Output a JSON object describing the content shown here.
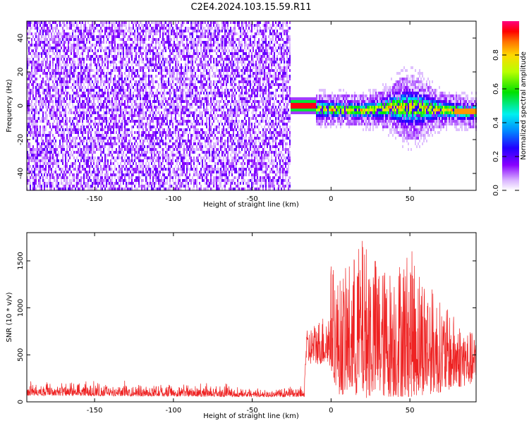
{
  "title": "C2E4.2024.103.15.59.R11",
  "chart_data": [
    {
      "type": "heatmap",
      "xlabel": "Height of straight line (km)",
      "ylabel": "Frequency (Hz)",
      "xlim": [
        -193,
        92
      ],
      "ylim": [
        -50,
        50
      ],
      "x_ticks": [
        -150,
        -100,
        -50,
        0,
        50
      ],
      "y_ticks": [
        -40,
        -20,
        0,
        20,
        40
      ],
      "colorbar": {
        "label": "Normalized spectral amplitude",
        "range": [
          0,
          1
        ],
        "ticks": [
          0.0,
          0.2,
          0.4,
          0.6,
          0.8
        ],
        "colormap": "rainbow (white-violet-blue-cyan-green-yellow-red-magenta)"
      },
      "regions": [
        {
          "x_range": [
            -193,
            -26
          ],
          "freq_range": [
            -50,
            50
          ],
          "amplitude": "low (0.05-0.25)",
          "pattern": "broadband noise"
        },
        {
          "x_range": [
            -26,
            -10
          ],
          "freq_center": 1,
          "amplitude": "high (0.8-1.0)",
          "pattern": "narrow line"
        },
        {
          "x_range": [
            -10,
            92
          ],
          "freq_center_trend": [
            [
              -10,
              -1
            ],
            [
              20,
              -2
            ],
            [
              40,
              0
            ],
            [
              60,
              -1
            ],
            [
              92,
              -3
            ]
          ],
          "freq_halfwidth": [
            8,
            20
          ],
          "amplitude": "0.3-0.9",
          "pattern": "meteor echo, widest near 50 km"
        }
      ]
    },
    {
      "type": "line",
      "xlabel": "Height of straight line (km)",
      "ylabel": "SNR (10 * v/v)",
      "xlim": [
        -193,
        92
      ],
      "ylim": [
        0,
        1800
      ],
      "x_ticks": [
        -150,
        -100,
        -50,
        0,
        50
      ],
      "y_ticks": [
        0,
        500,
        1000,
        1500
      ],
      "series": [
        {
          "color": "#ee2222",
          "envelope": [
            {
              "x": -193,
              "low": 20,
              "high": 320
            },
            {
              "x": -150,
              "low": 20,
              "high": 300
            },
            {
              "x": -100,
              "low": 20,
              "high": 270
            },
            {
              "x": -50,
              "low": 20,
              "high": 240
            },
            {
              "x": -17,
              "low": 20,
              "high": 230
            },
            {
              "x": -16,
              "low": 400,
              "high": 750
            },
            {
              "x": -1,
              "low": 400,
              "high": 1000
            },
            {
              "x": 0,
              "low": 300,
              "high": 1500
            },
            {
              "x": 5,
              "low": 80,
              "high": 1300
            },
            {
              "x": 20,
              "low": 40,
              "high": 1750
            },
            {
              "x": 35,
              "low": 50,
              "high": 1400
            },
            {
              "x": 50,
              "low": 50,
              "high": 1650
            },
            {
              "x": 70,
              "low": 100,
              "high": 1050
            },
            {
              "x": 92,
              "low": 200,
              "high": 700
            }
          ]
        }
      ]
    }
  ]
}
